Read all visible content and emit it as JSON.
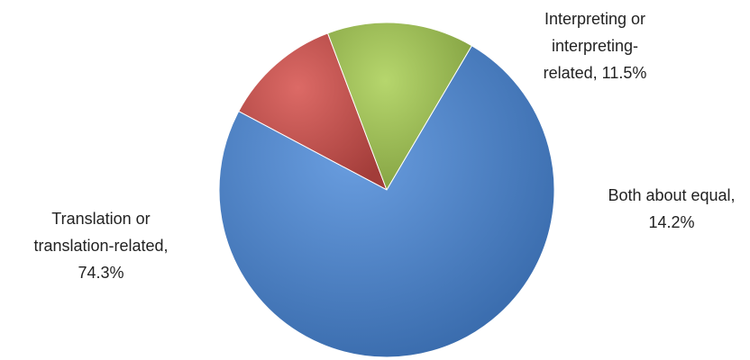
{
  "chart_data": {
    "type": "pie",
    "title": "",
    "slices": [
      {
        "label_lines": [
          "Translation or",
          "translation-related,",
          "74.3%"
        ],
        "category": "Translation or translation-related",
        "value": 74.3,
        "color": "#4a7ebb"
      },
      {
        "label_lines": [
          "Interpreting or",
          "interpreting-",
          "related, 11.5%"
        ],
        "category": "Interpreting or interpreting-related",
        "value": 11.5,
        "color": "#c0504d"
      },
      {
        "label_lines": [
          "Both about equal,",
          "14.2%"
        ],
        "category": "Both about equal",
        "value": 14.2,
        "color": "#9bbb59"
      }
    ],
    "legend": "none",
    "data_labels": "outside"
  }
}
